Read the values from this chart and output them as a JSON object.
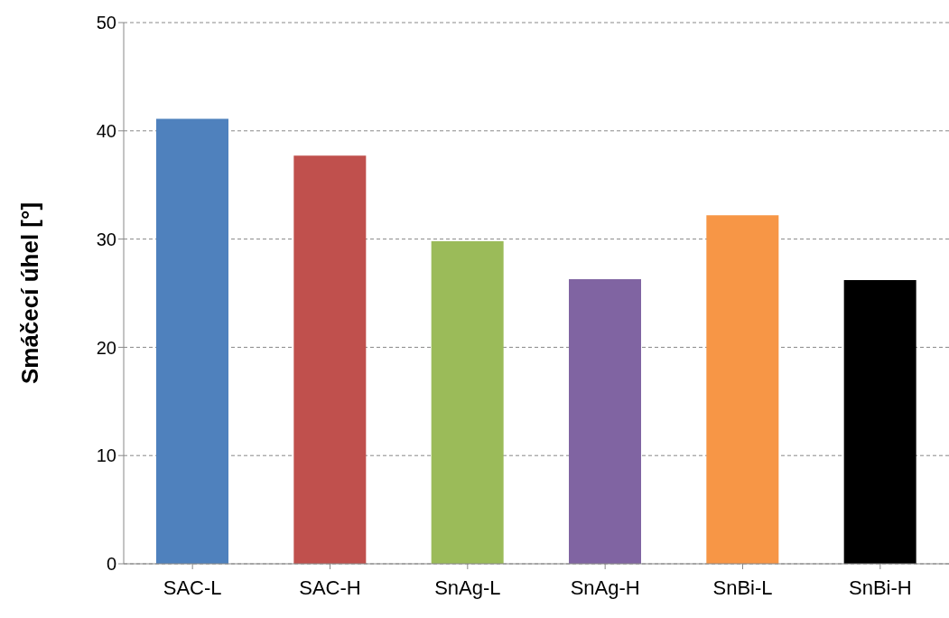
{
  "chart_data": {
    "type": "bar",
    "ylabel": "Smáčecí úhel [°]",
    "categories": [
      "SAC-L",
      "SAC-H",
      "SnAg-L",
      "SnAg-H",
      "SnBi-L",
      "SnBi-H"
    ],
    "values": [
      41.1,
      37.7,
      29.8,
      26.3,
      32.2,
      26.2
    ],
    "colors": [
      "#4f81bd",
      "#c0504d",
      "#9bbb59",
      "#8064a2",
      "#f79646",
      "#000000"
    ],
    "ylim": [
      0,
      50
    ],
    "yticks": [
      0,
      10,
      20,
      30,
      40,
      50
    ],
    "grid": "y"
  }
}
